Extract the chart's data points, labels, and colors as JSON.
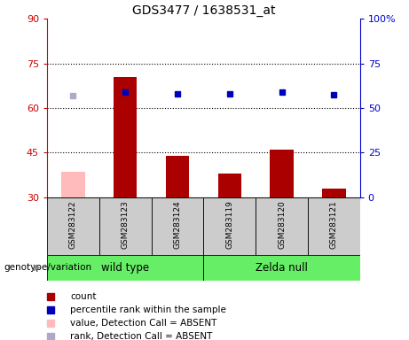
{
  "title": "GDS3477 / 1638531_at",
  "samples": [
    "GSM283122",
    "GSM283123",
    "GSM283124",
    "GSM283119",
    "GSM283120",
    "GSM283121"
  ],
  "count_values": [
    38.5,
    70.5,
    44.0,
    38.0,
    46.0,
    33.0
  ],
  "count_absent": [
    true,
    false,
    false,
    false,
    false,
    false
  ],
  "percentile_values": [
    57.0,
    59.0,
    58.0,
    58.0,
    59.0,
    57.5
  ],
  "percentile_absent": [
    true,
    false,
    false,
    false,
    false,
    false
  ],
  "groups": [
    {
      "label": "wild type",
      "indices": [
        0,
        1,
        2
      ],
      "color": "#66ee66"
    },
    {
      "label": "Zelda null",
      "indices": [
        3,
        4,
        5
      ],
      "color": "#66ee66"
    }
  ],
  "ylim_left": [
    30,
    90
  ],
  "ylim_right": [
    0,
    100
  ],
  "yticks_left": [
    30,
    45,
    60,
    75,
    90
  ],
  "yticks_right": [
    0,
    25,
    50,
    75,
    100
  ],
  "left_axis_color": "#cc0000",
  "right_axis_color": "#0000cc",
  "bar_color_present": "#aa0000",
  "bar_color_absent": "#ffbbbb",
  "dot_color_present": "#0000bb",
  "dot_color_absent": "#aaaacc",
  "grid_lines": [
    45,
    60,
    75
  ],
  "genotype_label": "genotype/variation",
  "legend": [
    {
      "label": "count",
      "color": "#aa0000"
    },
    {
      "label": "percentile rank within the sample",
      "color": "#0000bb"
    },
    {
      "label": "value, Detection Call = ABSENT",
      "color": "#ffbbbb"
    },
    {
      "label": "rank, Detection Call = ABSENT",
      "color": "#aaaacc"
    }
  ]
}
